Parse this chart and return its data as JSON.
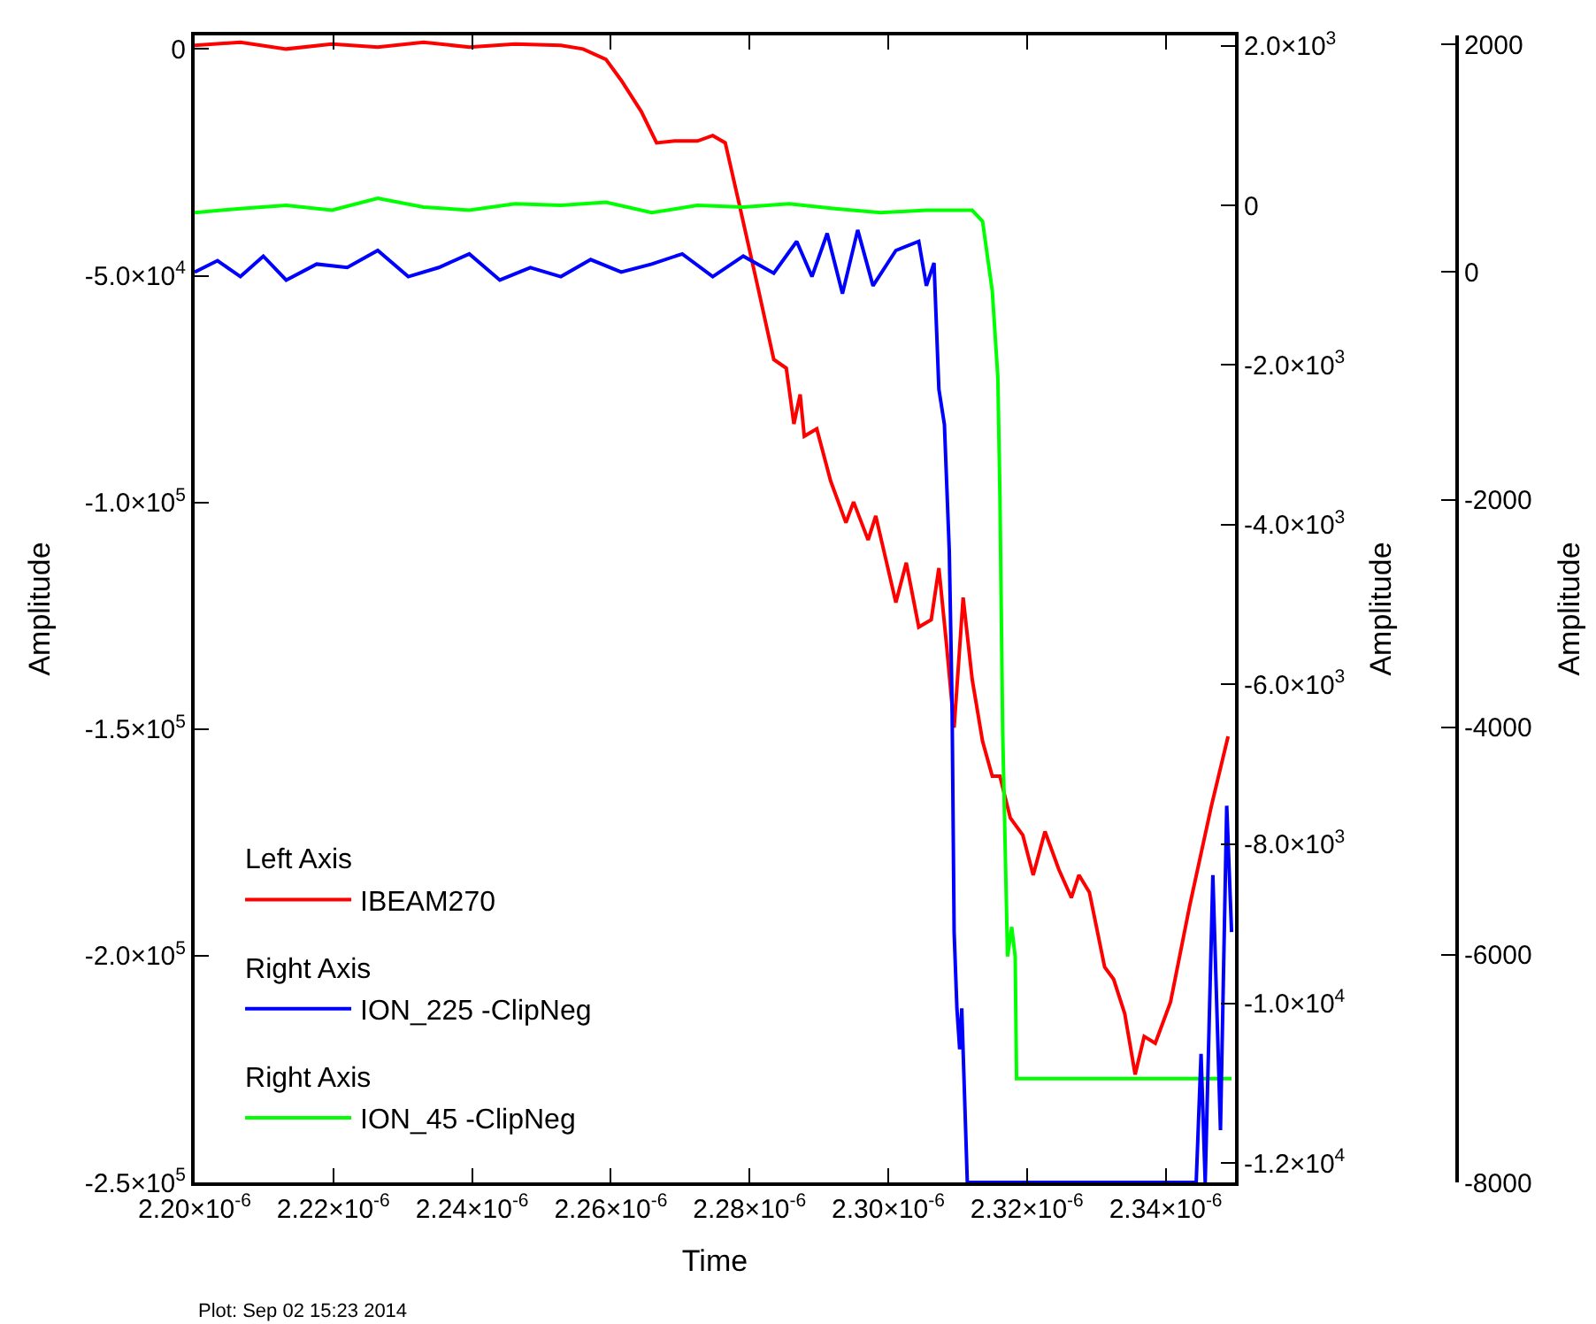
{
  "chart_data": {
    "type": "line",
    "xlabel": "Time",
    "ylabel": "Amplitude",
    "y2label": "Amplitude",
    "y3label": "Amplitude",
    "xlim": [
      2.2e-06,
      2.35e-06
    ],
    "xticks": [
      {
        "value": 2.2e-06,
        "label": "2.20×10$^{-6}$"
      },
      {
        "value": 2.22e-06,
        "label": "2.22×10$^{-6}$"
      },
      {
        "value": 2.24e-06,
        "label": "2.24×10$^{-6}$"
      },
      {
        "value": 2.26e-06,
        "label": "2.26×10$^{-6}$"
      },
      {
        "value": 2.28e-06,
        "label": "2.28×10$^{-6}$"
      },
      {
        "value": 2.3e-06,
        "label": "2.30×10$^{-6}$"
      },
      {
        "value": 2.32e-06,
        "label": "2.32×10$^{-6}$"
      },
      {
        "value": 2.34e-06,
        "label": "2.34×10$^{-6}$"
      }
    ],
    "ylim": [
      -250000,
      3000
    ],
    "yticks": [
      0,
      {
        "value": -50000,
        "label": "-5.0×10$^{4}$"
      },
      {
        "value": -100000,
        "label": "-1.0×10$^{5}$"
      },
      {
        "value": -150000,
        "label": "-1.5×10$^{5}$"
      },
      {
        "value": -200000,
        "label": "-2.0×10$^{5}$"
      },
      {
        "value": -250000,
        "label": "-2.5×10$^{5}$"
      }
    ],
    "y2lim": [
      -12240,
      2130
    ],
    "y2ticks": [
      {
        "value": 2000,
        "label": "2.0×10$^{3}$"
      },
      0,
      {
        "value": -2000,
        "label": "-2.0×10$^{3}$"
      },
      {
        "value": -4000,
        "label": "-4.0×10$^{3}$"
      },
      {
        "value": -6000,
        "label": "-6.0×10$^{3}$"
      },
      {
        "value": -8000,
        "label": "-8.0×10$^{3}$"
      },
      {
        "value": -10000,
        "label": "-1.0×10$^{4}$"
      },
      {
        "value": -12000,
        "label": "-1.2×10$^{4}$"
      }
    ],
    "y3lim": [
      -8000,
      2080
    ],
    "y3ticks": [
      2000,
      0,
      -2000,
      -4000,
      -6000,
      -8000
    ],
    "legend": "bottom left",
    "marker": "none",
    "line_style": "solid",
    "annotations": [
      "Left Axis",
      "Right Axis",
      "Right Axis",
      "Plot: Sep 02 15:23 2014"
    ],
    "series": [
      {
        "name": "IBEAM270",
        "color": "#ff0000",
        "axis": "y",
        "x": [
          2.2e-06,
          2.2066e-06,
          2.2132e-06,
          2.2198e-06,
          2.2264e-06,
          2.233e-06,
          2.2396e-06,
          2.2462e-06,
          2.2528e-06,
          2.256e-06,
          2.2593e-06,
          2.2615e-06,
          2.2644e-06,
          2.2666e-06,
          2.2692e-06,
          2.2725e-06,
          2.2747e-06,
          2.2765e-06,
          2.2785e-06,
          2.2813e-06,
          2.2835e-06,
          2.2853e-06,
          2.2864e-06,
          2.2873e-06,
          2.2879e-06,
          2.2897e-06,
          2.2917e-06,
          2.2939e-06,
          2.295e-06,
          2.2971e-06,
          2.2982e-06,
          2.2996e-06,
          2.3011e-06,
          2.3026e-06,
          2.3044e-06,
          2.3062e-06,
          2.3073e-06,
          2.3084e-06,
          2.3095e-06,
          2.3108e-06,
          2.3121e-06,
          2.3136e-06,
          2.315e-06,
          2.3161e-06,
          2.3176e-06,
          2.3194e-06,
          2.3209e-06,
          2.3226e-06,
          2.3246e-06,
          2.3264e-06,
          2.3275e-06,
          2.329e-06,
          2.3312e-06,
          2.3325e-06,
          2.3341e-06,
          2.3356e-06,
          2.3369e-06,
          2.3385e-06,
          2.3407e-06,
          2.3435e-06,
          2.3466e-06,
          2.349e-06
        ],
        "values": [
          800,
          1500,
          0,
          1100,
          400,
          1500,
          400,
          1100,
          800,
          0,
          -2300,
          -6900,
          -13800,
          -20700,
          -20300,
          -20300,
          -19100,
          -20700,
          -34100,
          -53200,
          -68500,
          -70400,
          -82700,
          -76200,
          -85400,
          -83800,
          -95300,
          -104500,
          -99900,
          -108300,
          -103000,
          -112200,
          -122100,
          -113300,
          -127500,
          -125900,
          -114500,
          -131300,
          -149700,
          -121000,
          -139000,
          -152700,
          -160400,
          -160400,
          -169600,
          -173400,
          -182200,
          -172600,
          -181000,
          -187200,
          -182200,
          -186000,
          -202500,
          -205200,
          -212800,
          -226200,
          -217800,
          -219300,
          -210200,
          -188700,
          -166900,
          -151600
        ]
      },
      {
        "name": "ION_225 -ClipNeg",
        "color": "#0000ff",
        "axis": "y3",
        "x": [
          2.2e-06,
          2.2033e-06,
          2.2066e-06,
          2.2099e-06,
          2.2132e-06,
          2.2176e-06,
          2.222e-06,
          2.2264e-06,
          2.2308e-06,
          2.2352e-06,
          2.2396e-06,
          2.244e-06,
          2.2484e-06,
          2.2528e-06,
          2.2571e-06,
          2.2615e-06,
          2.2659e-06,
          2.2703e-06,
          2.2747e-06,
          2.2791e-06,
          2.2835e-06,
          2.2868e-06,
          2.289e-06,
          2.2912e-06,
          2.2934e-06,
          2.2956e-06,
          2.2978e-06,
          2.3011e-06,
          2.3044e-06,
          2.3055e-06,
          2.3066e-06,
          2.3073e-06,
          2.3081e-06,
          2.3088e-06,
          2.3092e-06,
          2.3095e-06,
          2.3099e-06,
          2.3103e-06,
          2.3106e-06,
          2.3114e-06,
          2.3444e-06,
          2.3451e-06,
          2.3457e-06,
          2.3468e-06,
          2.3479e-06,
          2.3488e-06,
          2.3495e-06
        ],
        "values": [
          0,
          100,
          -40,
          140,
          -70,
          70,
          40,
          190,
          -40,
          40,
          160,
          -70,
          40,
          -40,
          110,
          0,
          70,
          160,
          -40,
          140,
          -10,
          270,
          -40,
          340,
          -190,
          370,
          -120,
          190,
          270,
          -120,
          80,
          -1030,
          -1340,
          -2450,
          -3780,
          -5800,
          -6470,
          -6830,
          -6470,
          -8000,
          -8000,
          -6870,
          -8000,
          -5300,
          -7540,
          -4690,
          -5800
        ]
      },
      {
        "name": "ION_45 -ClipNeg",
        "color": "#00ff00",
        "axis": "y2",
        "x": [
          2.2e-06,
          2.2066e-06,
          2.2132e-06,
          2.2198e-06,
          2.2264e-06,
          2.233e-06,
          2.2396e-06,
          2.2462e-06,
          2.2528e-06,
          2.2593e-06,
          2.2659e-06,
          2.2725e-06,
          2.2791e-06,
          2.2857e-06,
          2.2923e-06,
          2.2989e-06,
          2.3055e-06,
          2.3121e-06,
          2.3136e-06,
          2.315e-06,
          2.3158e-06,
          2.3161e-06,
          2.3165e-06,
          2.3172e-06,
          2.3178e-06,
          2.3183e-06,
          2.3185e-06,
          2.3495e-06
        ],
        "values": [
          -90,
          -40,
          0,
          -60,
          90,
          -20,
          -60,
          20,
          0,
          40,
          -90,
          0,
          -20,
          20,
          -40,
          -90,
          -60,
          -60,
          -200,
          -1070,
          -2150,
          -3610,
          -6590,
          -9410,
          -9040,
          -9410,
          -10940,
          -10940
        ]
      }
    ]
  }
}
